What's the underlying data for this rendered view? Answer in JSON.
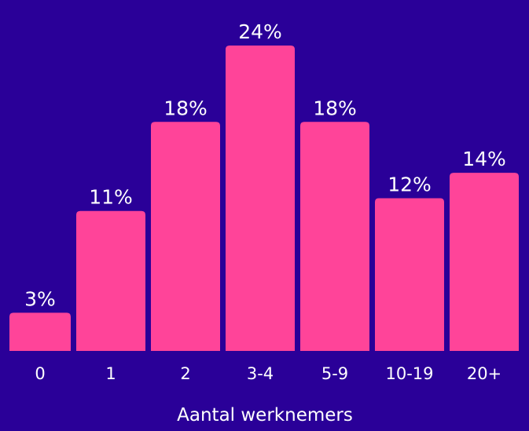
{
  "chart_data": {
    "type": "bar",
    "x_label": "Aantal werknemers",
    "categories": [
      "0",
      "1",
      "2",
      "3-4",
      "5-9",
      "10-19",
      "20+"
    ],
    "values": [
      3,
      11,
      18,
      24,
      18,
      12,
      14
    ],
    "value_labels": [
      "3%",
      "11%",
      "18%",
      "24%",
      "18%",
      "12%",
      "14%"
    ],
    "color": "#ff4499"
  }
}
